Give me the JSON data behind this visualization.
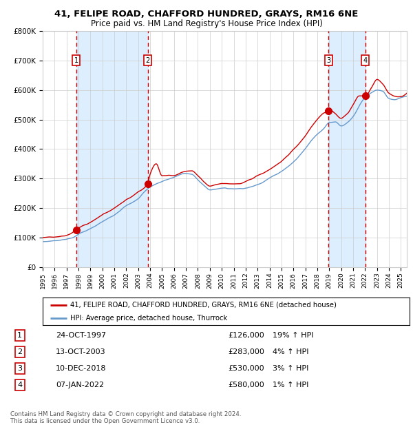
{
  "title1": "41, FELIPE ROAD, CHAFFORD HUNDRED, GRAYS, RM16 6NE",
  "title2": "Price paid vs. HM Land Registry's House Price Index (HPI)",
  "hpi_label": "HPI: Average price, detached house, Thurrock",
  "prop_label": "41, FELIPE ROAD, CHAFFORD HUNDRED, GRAYS, RM16 6NE (detached house)",
  "footer1": "Contains HM Land Registry data © Crown copyright and database right 2024.",
  "footer2": "This data is licensed under the Open Government Licence v3.0.",
  "transactions": [
    {
      "num": 1,
      "date": "24-OCT-1997",
      "price": "£126,000",
      "hpi": "19% ↑ HPI",
      "year": 1997.8,
      "price_val": 126000
    },
    {
      "num": 2,
      "date": "13-OCT-2003",
      "price": "£283,000",
      "hpi": "4% ↑ HPI",
      "year": 2003.8,
      "price_val": 283000
    },
    {
      "num": 3,
      "date": "10-DEC-2018",
      "price": "£530,000",
      "hpi": "3% ↑ HPI",
      "year": 2018.95,
      "price_val": 530000
    },
    {
      "num": 4,
      "date": "07-JAN-2022",
      "price": "£580,000",
      "hpi": "1% ↑ HPI",
      "year": 2022.02,
      "price_val": 580000
    }
  ],
  "prop_color": "#cc0000",
  "hpi_color": "#6699cc",
  "bg_color": "#ffffff",
  "shade_color": "#ddeeff",
  "grid_color": "#cccccc",
  "ylim": [
    0,
    800000
  ],
  "xlim_start": 1995,
  "xlim_end": 2025.5,
  "yticks": [
    0,
    100000,
    200000,
    300000,
    400000,
    500000,
    600000,
    700000,
    800000
  ],
  "hpi_key_years": [
    1995,
    1996,
    1997,
    1997.5,
    1998,
    1999,
    2000,
    2001,
    2002,
    2003,
    2003.5,
    2004,
    2005,
    2006,
    2007,
    2007.5,
    2008,
    2008.5,
    2009,
    2009.5,
    2010,
    2011,
    2012,
    2013,
    2014,
    2015,
    2016,
    2017,
    2017.5,
    2018,
    2018.5,
    2019,
    2019.5,
    2020,
    2020.5,
    2021,
    2021.5,
    2022,
    2022.5,
    2023,
    2023.5,
    2024,
    2024.5,
    2025,
    2025.5
  ],
  "hpi_key_vals": [
    86000,
    90000,
    95000,
    100000,
    112000,
    130000,
    154000,
    178000,
    208000,
    232000,
    255000,
    272000,
    290000,
    305000,
    318000,
    315000,
    295000,
    278000,
    262000,
    265000,
    268000,
    266000,
    268000,
    280000,
    302000,
    325000,
    356000,
    402000,
    430000,
    450000,
    468000,
    490000,
    492000,
    478000,
    488000,
    510000,
    545000,
    575000,
    590000,
    600000,
    595000,
    572000,
    568000,
    575000,
    580000
  ],
  "prop_key_years": [
    1995,
    1996,
    1997,
    1997.8,
    1998,
    1999,
    2000,
    2001,
    2002,
    2003,
    2003.8,
    2004,
    2004.5,
    2005,
    2006,
    2007,
    2007.5,
    2008,
    2008.5,
    2009,
    2009.5,
    2010,
    2011,
    2012,
    2013,
    2014,
    2015,
    2016,
    2017,
    2017.5,
    2018,
    2018.5,
    2018.95,
    2019,
    2019.5,
    2020,
    2020.5,
    2021,
    2021.5,
    2022.02,
    2022.5,
    2023,
    2023.5,
    2024,
    2024.5,
    2025,
    2025.5
  ],
  "prop_key_vals": [
    100000,
    103000,
    108000,
    126000,
    133000,
    152000,
    178000,
    200000,
    228000,
    255000,
    283000,
    315000,
    350000,
    310000,
    310000,
    325000,
    325000,
    310000,
    290000,
    275000,
    278000,
    285000,
    282000,
    290000,
    310000,
    330000,
    360000,
    398000,
    445000,
    475000,
    500000,
    520000,
    530000,
    535000,
    520000,
    505000,
    520000,
    550000,
    580000,
    580000,
    605000,
    635000,
    620000,
    590000,
    580000,
    578000,
    590000
  ]
}
